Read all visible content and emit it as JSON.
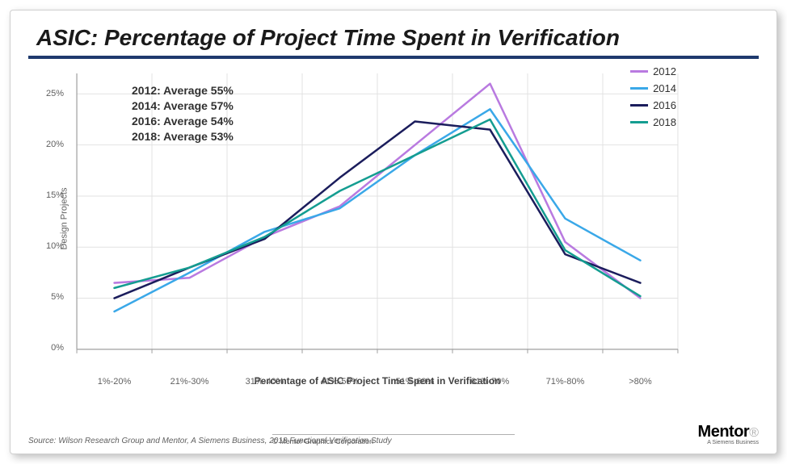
{
  "title": "ASIC: Percentage of Project Time Spent in Verification",
  "chart": {
    "type": "line",
    "xlabel": "Percentage of ASIC Project Time Spent in Verification",
    "ylabel": "Design Projects",
    "categories": [
      "1%-20%",
      "21%-30%",
      "31%-40%",
      "41%-50%",
      "51%-60%",
      "61%-70%",
      "71%-80%",
      ">80%"
    ],
    "ylim": [
      0,
      27
    ],
    "yticks": [
      0,
      5,
      10,
      15,
      20,
      25
    ],
    "ytick_labels": [
      "0%",
      "5%",
      "10%",
      "15%",
      "20%",
      "25%"
    ],
    "grid_color": "#e2e2e2",
    "background_color": "#ffffff",
    "line_width": 2.5,
    "series": [
      {
        "name": "2012",
        "color": "#b97ae0",
        "values": [
          6.5,
          7.0,
          11.0,
          14.0,
          20.0,
          26.0,
          10.5,
          5.0
        ]
      },
      {
        "name": "2014",
        "color": "#3aa8e8",
        "values": [
          3.7,
          7.5,
          11.5,
          13.8,
          19.0,
          23.5,
          12.8,
          8.7
        ]
      },
      {
        "name": "2016",
        "color": "#1b1d5c",
        "values": [
          5.0,
          8.0,
          10.8,
          16.8,
          22.3,
          21.5,
          9.3,
          6.5
        ]
      },
      {
        "name": "2018",
        "color": "#149d91",
        "values": [
          6.0,
          8.0,
          11.0,
          15.5,
          19.0,
          22.5,
          9.7,
          5.2
        ]
      }
    ],
    "averages": [
      "2012:  Average 55%",
      "2014:  Average 57%",
      "2016:  Average 54%",
      "2018:  Average 53%"
    ],
    "legend_position": "right"
  },
  "footer": {
    "source": "Source:   Wilson Research Group and Mentor, A Siemens Business, 2018 Functional Verification  Study",
    "copyright": "© Mentor Graphics Corporation",
    "logo_main": "Mentor",
    "logo_sub": "A Siemens Business"
  }
}
